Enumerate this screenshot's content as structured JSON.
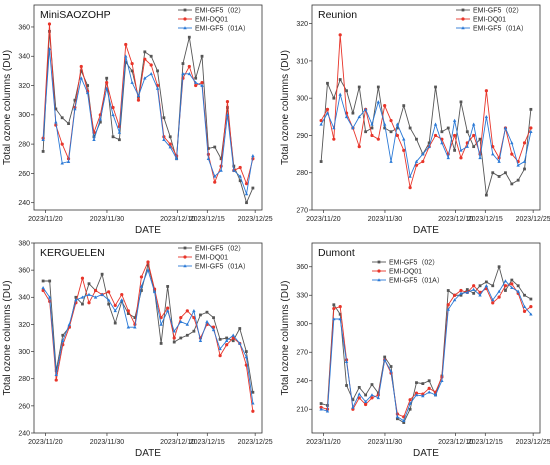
{
  "chart_data": [
    {
      "type": "line",
      "title": "MiniSAOZOHP",
      "xlabel": "DATE",
      "ylabel": "Total ozone columns (DU)",
      "x_ticks": [
        "2023/11/20",
        "2023/11/30",
        "2023/12/10",
        "2023/12/15",
        "2023/12/25"
      ],
      "ylim": [
        235,
        375
      ],
      "y_ticks": [
        240,
        260,
        280,
        300,
        320,
        340,
        360
      ],
      "legend_position": "top-right",
      "series": [
        {
          "name": "EMI-GF5（02）",
          "color": "#555555",
          "marker": "square",
          "values": [
            275,
            357,
            304,
            298,
            294,
            310,
            330,
            320,
            285,
            295,
            325,
            285,
            283,
            336,
            330,
            312,
            343,
            340,
            330,
            298,
            285,
            270,
            335,
            353,
            325,
            340,
            277,
            278,
            270,
            305,
            265,
            255,
            240,
            250
          ]
        },
        {
          "name": "EMI-DQ01",
          "color": "#e8352a",
          "marker": "circle",
          "values": [
            284,
            362,
            293,
            280,
            270,
            305,
            333,
            316,
            288,
            300,
            322,
            305,
            292,
            348,
            335,
            310,
            338,
            334,
            320,
            285,
            280,
            272,
            325,
            333,
            320,
            322,
            273,
            254,
            265,
            309,
            262,
            264,
            253,
            270
          ]
        },
        {
          "name": "EMI-GF5（01A）",
          "color": "#2a79d6",
          "marker": "triangle",
          "values": [
            283,
            345,
            295,
            267,
            268,
            304,
            325,
            315,
            283,
            297,
            318,
            300,
            288,
            340,
            322,
            313,
            325,
            328,
            318,
            283,
            278,
            270,
            328,
            328,
            322,
            320,
            270,
            258,
            262,
            300,
            262,
            258,
            246,
            272
          ]
        }
      ]
    },
    {
      "type": "line",
      "title": "Reunion",
      "xlabel": "DATE",
      "ylabel": "Total ozone columns (DU)",
      "x_ticks": [
        "2023/11/20",
        "2023/11/30",
        "2023/12/10",
        "2023/12/15",
        "2023/12/25"
      ],
      "ylim": [
        270,
        325
      ],
      "y_ticks": [
        270,
        280,
        290,
        300,
        310,
        320
      ],
      "legend_position": "top-right",
      "series": [
        {
          "name": "EMI-GF5（02）",
          "color": "#555555",
          "marker": "square",
          "values": [
            283,
            304,
            300,
            305,
            302,
            296,
            303,
            291,
            292,
            303,
            292,
            291,
            292,
            298,
            292,
            289,
            285,
            288,
            303,
            291,
            292,
            286,
            299,
            291,
            287,
            289,
            274,
            280,
            279,
            280,
            277,
            278,
            281,
            297
          ]
        },
        {
          "name": "EMI-DQ01",
          "color": "#e8352a",
          "marker": "circle",
          "values": [
            294,
            297,
            289,
            317,
            296,
            292,
            287,
            297,
            290,
            289,
            298,
            294,
            290,
            286,
            276,
            282,
            283,
            287,
            290,
            289,
            285,
            290,
            284,
            288,
            290,
            285,
            302,
            287,
            284,
            292,
            285,
            283,
            288,
            292
          ]
        },
        {
          "name": "EMI-GF5（01A）",
          "color": "#2a79d6",
          "marker": "triangle",
          "values": [
            293,
            296,
            292,
            301,
            295,
            292,
            295,
            297,
            293,
            299,
            293,
            283,
            293,
            289,
            279,
            283,
            285,
            287,
            293,
            288,
            284,
            294,
            286,
            287,
            293,
            284,
            295,
            285,
            283,
            292,
            288,
            282,
            283,
            291
          ]
        }
      ]
    },
    {
      "type": "line",
      "title": "KERGUELEN",
      "xlabel": "DATE",
      "ylabel": "Total ozone columns (DU)",
      "x_ticks": [
        "2023/11/20",
        "2023/11/30",
        "2023/12/10",
        "2023/12/15",
        "2023/12/25"
      ],
      "ylim": [
        240,
        380
      ],
      "y_ticks": [
        240,
        260,
        280,
        300,
        320,
        340,
        360,
        380
      ],
      "legend_position": "top-right",
      "series": [
        {
          "name": "EMI-GF5（02）",
          "color": "#555555",
          "marker": "square",
          "values": [
            352,
            352,
            286,
            312,
            318,
            340,
            335,
            350,
            345,
            357,
            335,
            321,
            337,
            328,
            325,
            345,
            364,
            345,
            306,
            348,
            307,
            310,
            312,
            315,
            327,
            329,
            325,
            309,
            310,
            308,
            317,
            300,
            270
          ]
        },
        {
          "name": "EMI-DQ01",
          "color": "#e8352a",
          "marker": "circle",
          "values": [
            345,
            337,
            279,
            305,
            318,
            336,
            354,
            336,
            345,
            342,
            344,
            334,
            342,
            330,
            320,
            355,
            366,
            346,
            325,
            332,
            310,
            325,
            330,
            325,
            310,
            320,
            318,
            297,
            305,
            310,
            306,
            290,
            256
          ]
        },
        {
          "name": "EMI-GF5（01A）",
          "color": "#2a79d6",
          "marker": "triangle",
          "values": [
            347,
            340,
            283,
            308,
            320,
            338,
            340,
            342,
            340,
            342,
            338,
            330,
            338,
            318,
            318,
            348,
            360,
            344,
            320,
            330,
            315,
            322,
            320,
            330,
            308,
            322,
            316,
            302,
            308,
            312,
            306,
            296,
            262
          ]
        }
      ]
    },
    {
      "type": "line",
      "title": "Dumont",
      "xlabel": "DATE",
      "ylabel": "Total ozone columns (DU)",
      "x_ticks": [
        "2023/11/20",
        "2023/11/30",
        "2023/12/10",
        "2023/12/15",
        "2023/12/25"
      ],
      "ylim": [
        185,
        385
      ],
      "y_ticks": [
        210,
        240,
        270,
        300,
        330,
        360
      ],
      "legend_position": "top-left",
      "series": [
        {
          "name": "EMI-GF5（02）",
          "color": "#555555",
          "marker": "square",
          "values": [
            216,
            214,
            320,
            310,
            235,
            220,
            233,
            225,
            236,
            227,
            265,
            255,
            200,
            196,
            210,
            238,
            237,
            240,
            225,
            245,
            335,
            330,
            330,
            336,
            332,
            340,
            344,
            340,
            360,
            335,
            346,
            340,
            330,
            326
          ]
        },
        {
          "name": "EMI-DQ01",
          "color": "#e8352a",
          "marker": "circle",
          "values": [
            212,
            210,
            316,
            318,
            262,
            210,
            222,
            215,
            222,
            225,
            262,
            248,
            205,
            202,
            220,
            227,
            226,
            232,
            228,
            244,
            320,
            330,
            335,
            333,
            340,
            333,
            337,
            322,
            328,
            340,
            342,
            332,
            313,
            318
          ]
        },
        {
          "name": "EMI-GF5（01A）",
          "color": "#2a79d6",
          "marker": "triangle",
          "values": [
            210,
            208,
            305,
            305,
            260,
            212,
            226,
            218,
            225,
            222,
            262,
            250,
            202,
            198,
            216,
            225,
            224,
            228,
            225,
            240,
            315,
            325,
            332,
            333,
            336,
            330,
            340,
            325,
            334,
            345,
            338,
            334,
            318,
            310
          ]
        }
      ]
    }
  ]
}
